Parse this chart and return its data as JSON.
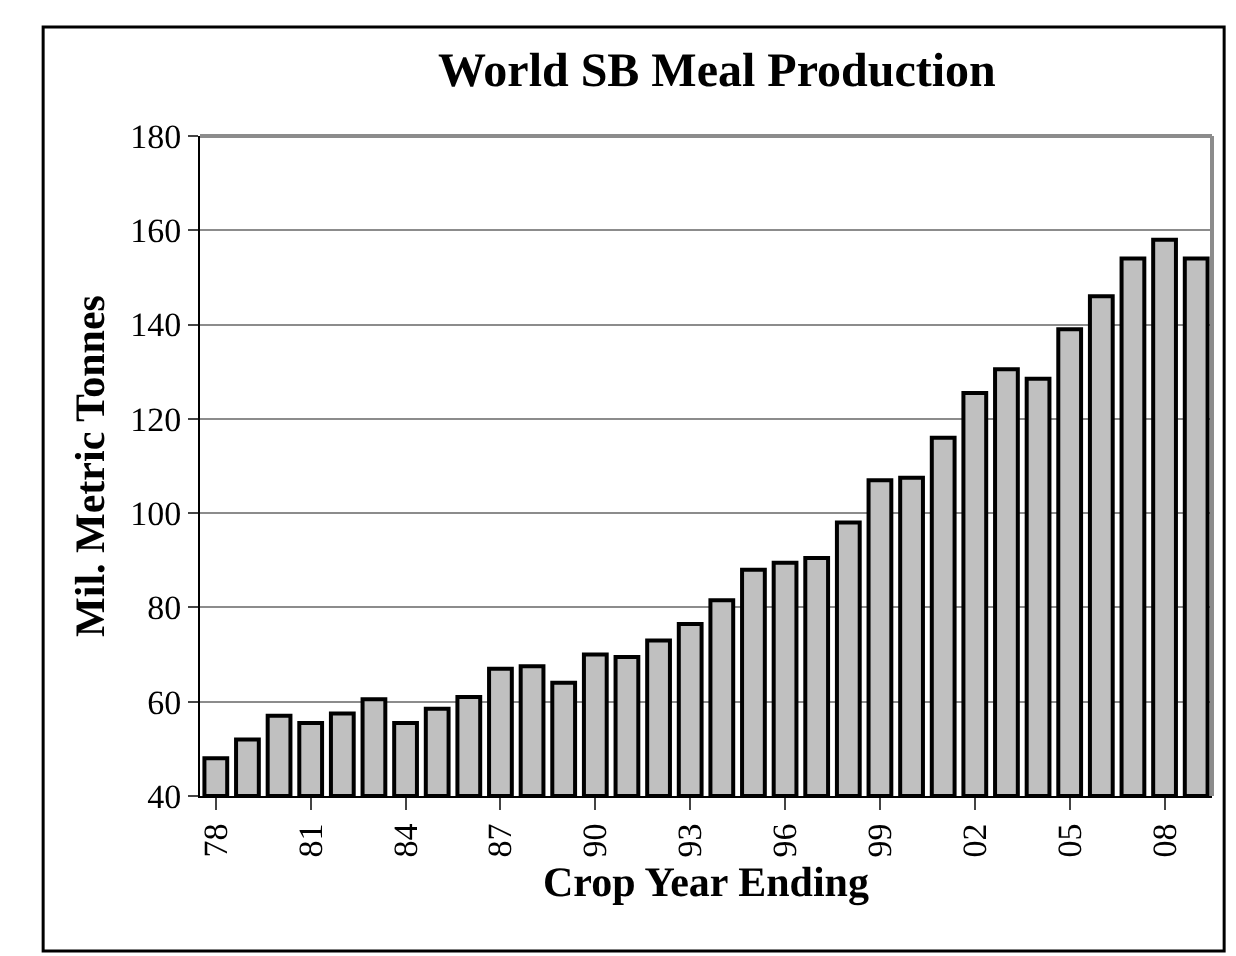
{
  "chart_data": {
    "type": "bar",
    "title": "World SB Meal Production",
    "xlabel": "Crop Year Ending",
    "ylabel": "Mil. Metric Tonnes",
    "categories": [
      "78",
      null,
      null,
      "81",
      null,
      null,
      "84",
      null,
      null,
      "87",
      null,
      null,
      "90",
      null,
      null,
      "93",
      null,
      null,
      "96",
      null,
      null,
      "99",
      null,
      null,
      "02",
      null,
      null,
      "05",
      null,
      null,
      "08",
      null
    ],
    "values": [
      48,
      52,
      57,
      55.5,
      57.5,
      60.5,
      55.5,
      58.5,
      61,
      67,
      67.5,
      64,
      70,
      69.5,
      73,
      76.5,
      81.5,
      88,
      89.5,
      90.5,
      98,
      107,
      107.5,
      116,
      125.5,
      130.5,
      128.5,
      139,
      146,
      154,
      158,
      154
    ],
    "color": "#c0c0c0",
    "ylim": [
      40,
      180
    ],
    "yticks": [
      40,
      60,
      80,
      100,
      120,
      140,
      160,
      180
    ],
    "grid": "y"
  }
}
